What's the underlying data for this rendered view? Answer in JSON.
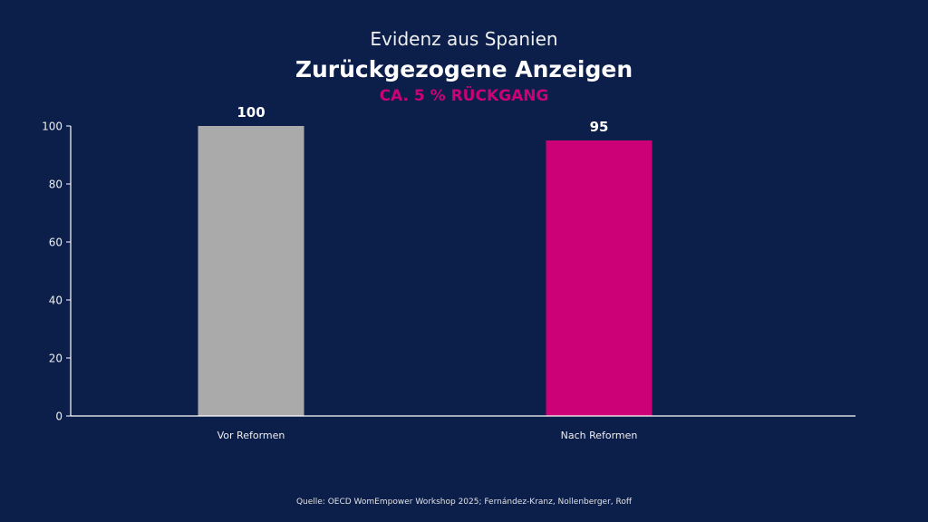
{
  "chart_data": {
    "type": "bar",
    "supertitle": "Evidenz aus Spanien",
    "title": "Zurückgezogene Anzeigen",
    "subtitle": "CA. 5 % RÜCKGANG",
    "categories": [
      "Vor Reformen",
      "Nach Reformen"
    ],
    "values": [
      100,
      95
    ],
    "value_labels": [
      "100",
      "95"
    ],
    "colors": [
      "#aaaaaa",
      "#cc0077"
    ],
    "yticks": [
      0,
      20,
      40,
      60,
      80,
      100
    ],
    "ylim": [
      0,
      100
    ],
    "xlabel": "",
    "ylabel": "",
    "grid": false,
    "source": "Quelle: OECD WomEmpower Workshop 2025; Fernández-Kranz, Nollenberger, Roff"
  }
}
